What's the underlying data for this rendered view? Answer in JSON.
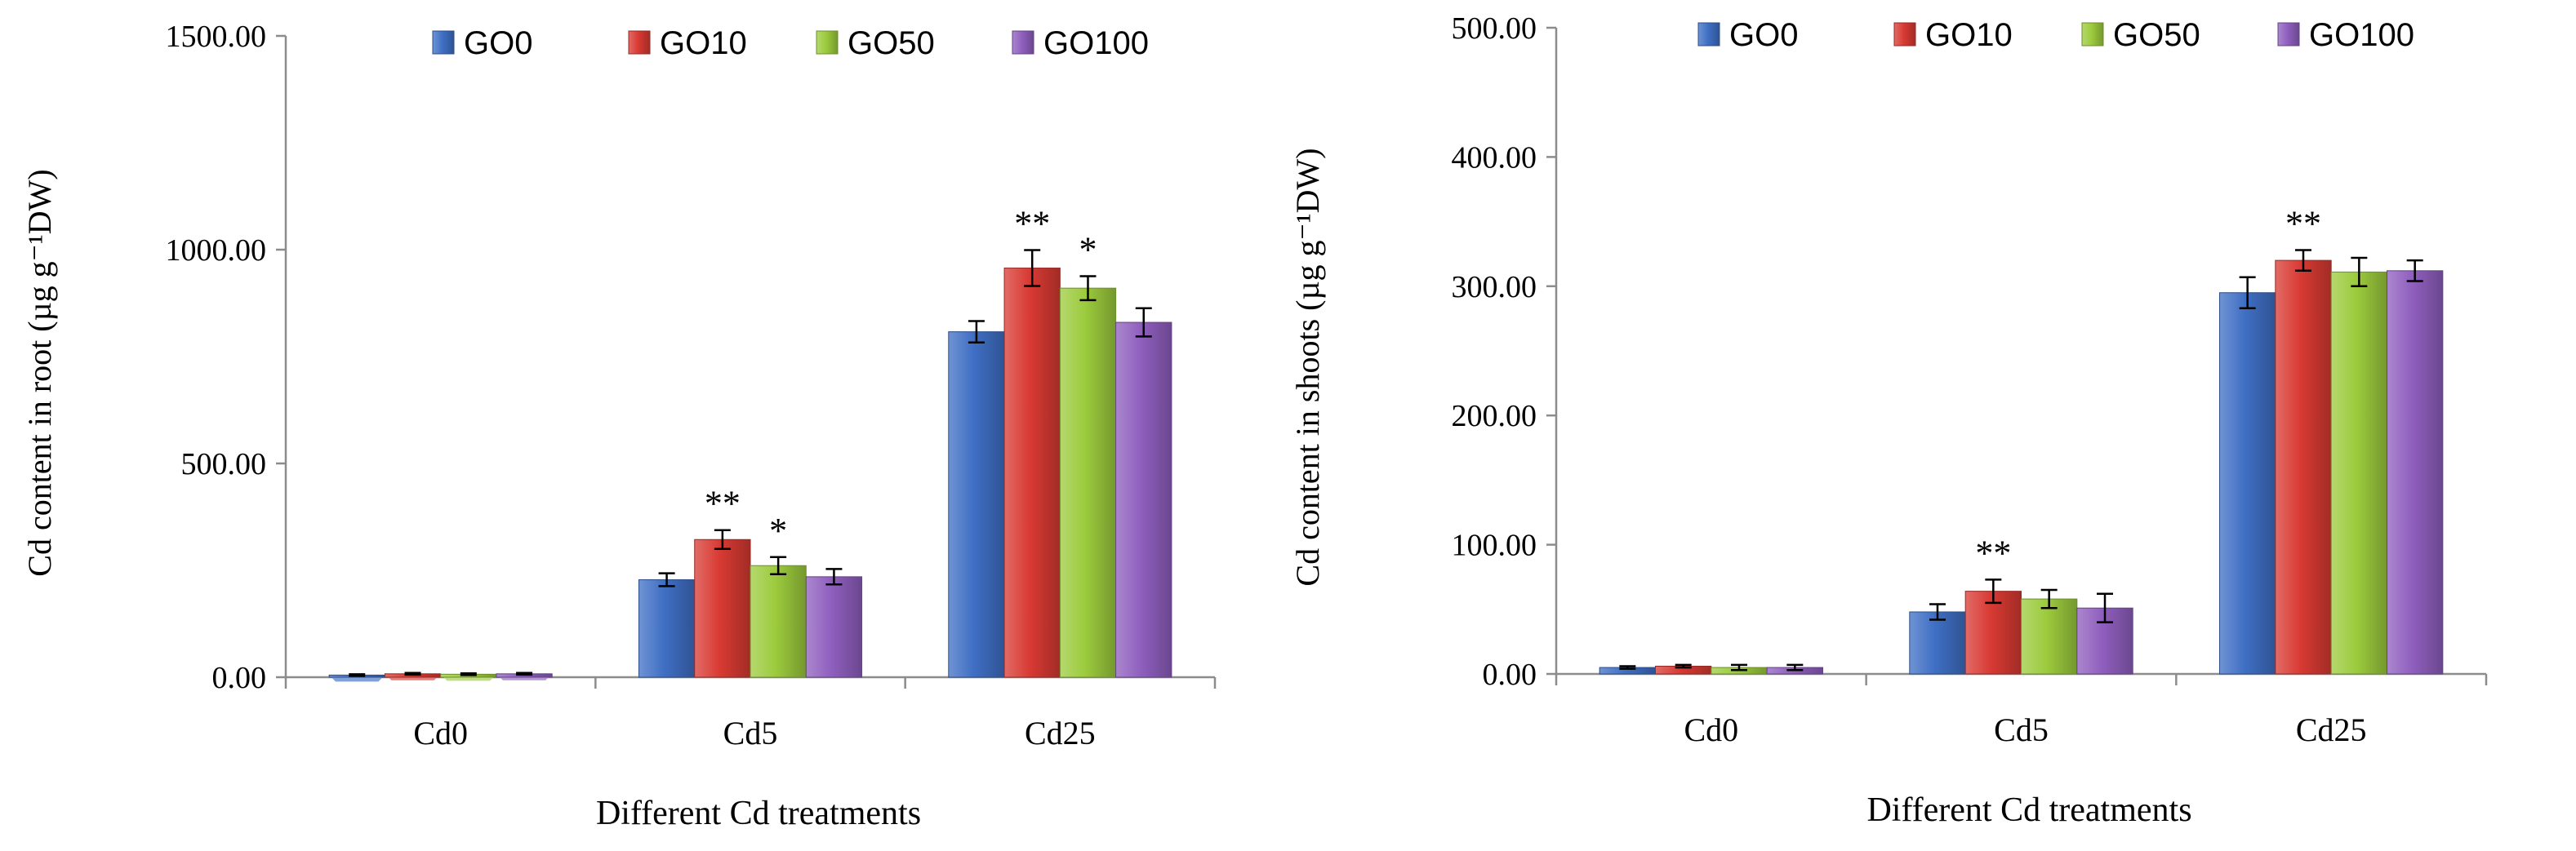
{
  "colors": {
    "GO0": "#3F6FC4",
    "GO10": "#D83A33",
    "GO50": "#9CCB3D",
    "GO100": "#8F5FBE",
    "axis": "#8C8C8C"
  },
  "chart_data": [
    {
      "type": "bar",
      "title": "",
      "xlabel": "Different Cd treatments",
      "ylabel": "Cd content in root (µg g⁻¹DW)",
      "ylim": [
        0,
        1500
      ],
      "yticks": [
        "0.00",
        "500.00",
        "1000.00",
        "1500.00"
      ],
      "ytick_values": [
        0,
        500,
        1000,
        1500
      ],
      "legend_position": "top",
      "categories": [
        "Cd0",
        "Cd5",
        "Cd25"
      ],
      "series": [
        {
          "name": "GO0",
          "values": [
            5,
            228,
            808
          ],
          "errors": [
            2,
            15,
            25
          ]
        },
        {
          "name": "GO10",
          "values": [
            8,
            322,
            957
          ],
          "errors": [
            2,
            22,
            42
          ]
        },
        {
          "name": "GO50",
          "values": [
            7,
            261,
            910
          ],
          "errors": [
            2,
            20,
            28
          ]
        },
        {
          "name": "GO100",
          "values": [
            8,
            235,
            830
          ],
          "errors": [
            2,
            18,
            33
          ]
        }
      ],
      "annotations": [
        {
          "series": "GO10",
          "category": "Cd5",
          "text": "**"
        },
        {
          "series": "GO50",
          "category": "Cd5",
          "text": "*"
        },
        {
          "series": "GO10",
          "category": "Cd25",
          "text": "**"
        },
        {
          "series": "GO50",
          "category": "Cd25",
          "text": "*"
        }
      ]
    },
    {
      "type": "bar",
      "title": "",
      "xlabel": "Different Cd treatments",
      "ylabel": "Cd content in shoots (µg g⁻¹DW)",
      "ylim": [
        0,
        500
      ],
      "yticks": [
        "0.00",
        "100.00",
        "200.00",
        "300.00",
        "400.00",
        "500.00"
      ],
      "ytick_values": [
        0,
        100,
        200,
        300,
        400,
        500
      ],
      "legend_position": "top",
      "categories": [
        "Cd0",
        "Cd5",
        "Cd25"
      ],
      "series": [
        {
          "name": "GO0",
          "values": [
            5,
            48,
            295
          ],
          "errors": [
            1,
            6,
            12
          ]
        },
        {
          "name": "GO10",
          "values": [
            6,
            64,
            320
          ],
          "errors": [
            1,
            9,
            8
          ]
        },
        {
          "name": "GO50",
          "values": [
            5,
            58,
            311
          ],
          "errors": [
            2,
            7,
            11
          ]
        },
        {
          "name": "GO100",
          "values": [
            5,
            51,
            312
          ],
          "errors": [
            2,
            11,
            8
          ]
        }
      ],
      "annotations": [
        {
          "series": "GO10",
          "category": "Cd5",
          "text": "**"
        },
        {
          "series": "GO10",
          "category": "Cd25",
          "text": "**"
        }
      ]
    }
  ]
}
